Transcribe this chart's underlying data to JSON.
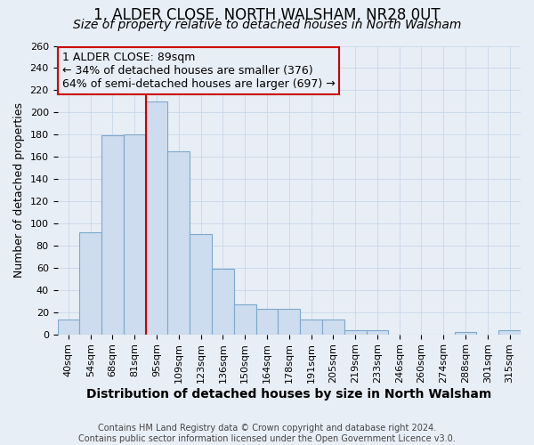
{
  "title": "1, ALDER CLOSE, NORTH WALSHAM, NR28 0UT",
  "subtitle": "Size of property relative to detached houses in North Walsham",
  "xlabel": "Distribution of detached houses by size in North Walsham",
  "ylabel": "Number of detached properties",
  "categories": [
    "40sqm",
    "54sqm",
    "68sqm",
    "81sqm",
    "95sqm",
    "109sqm",
    "123sqm",
    "136sqm",
    "150sqm",
    "164sqm",
    "178sqm",
    "191sqm",
    "205sqm",
    "219sqm",
    "233sqm",
    "246sqm",
    "260sqm",
    "274sqm",
    "288sqm",
    "301sqm",
    "315sqm"
  ],
  "values": [
    13,
    92,
    179,
    180,
    210,
    165,
    90,
    59,
    27,
    23,
    23,
    13,
    13,
    4,
    4,
    0,
    0,
    0,
    2,
    0,
    4
  ],
  "bar_color": "#cddcee",
  "bar_edge_color": "#7ea8cc",
  "grid_color": "#c8d8e8",
  "background_color": "#e8eef6",
  "annotation_line1": "1 ALDER CLOSE: 89sqm",
  "annotation_line2": "← 34% of detached houses are smaller (376)",
  "annotation_line3": "64% of semi-detached houses are larger (697) →",
  "vline_x_index": 3.5,
  "vline_color": "#cc0000",
  "annotation_box_color": "#cc0000",
  "ylim": [
    0,
    260
  ],
  "yticks": [
    0,
    20,
    40,
    60,
    80,
    100,
    120,
    140,
    160,
    180,
    200,
    220,
    240,
    260
  ],
  "footer_line1": "Contains HM Land Registry data © Crown copyright and database right 2024.",
  "footer_line2": "Contains public sector information licensed under the Open Government Licence v3.0.",
  "title_fontsize": 12,
  "subtitle_fontsize": 10,
  "xlabel_fontsize": 10,
  "ylabel_fontsize": 9,
  "tick_fontsize": 8,
  "annotation_fontsize": 9,
  "footer_fontsize": 7
}
